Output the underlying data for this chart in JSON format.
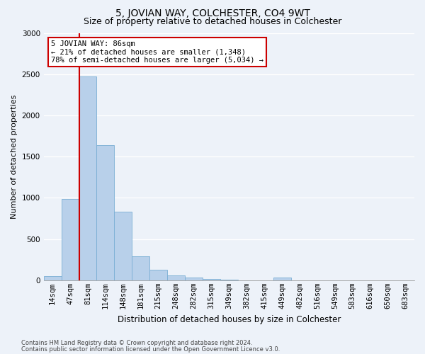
{
  "title": "5, JOVIAN WAY, COLCHESTER, CO4 9WT",
  "subtitle": "Size of property relative to detached houses in Colchester",
  "xlabel": "Distribution of detached houses by size in Colchester",
  "ylabel": "Number of detached properties",
  "categories": [
    "14sqm",
    "47sqm",
    "81sqm",
    "114sqm",
    "148sqm",
    "181sqm",
    "215sqm",
    "248sqm",
    "282sqm",
    "315sqm",
    "349sqm",
    "382sqm",
    "415sqm",
    "449sqm",
    "482sqm",
    "516sqm",
    "549sqm",
    "583sqm",
    "616sqm",
    "650sqm",
    "683sqm"
  ],
  "values": [
    50,
    990,
    2470,
    1640,
    830,
    295,
    130,
    55,
    30,
    15,
    5,
    0,
    0,
    30,
    0,
    0,
    0,
    0,
    0,
    0,
    0
  ],
  "bar_color": "#b8d0ea",
  "bar_edge_color": "#7aaed4",
  "vline_index": 2,
  "vline_color": "#cc0000",
  "annotation_text": "5 JOVIAN WAY: 86sqm\n← 21% of detached houses are smaller (1,348)\n78% of semi-detached houses are larger (5,034) →",
  "annotation_box_facecolor": "#ffffff",
  "annotation_box_edgecolor": "#cc0000",
  "ylim": [
    0,
    3000
  ],
  "yticks": [
    0,
    500,
    1000,
    1500,
    2000,
    2500,
    3000
  ],
  "footer1": "Contains HM Land Registry data © Crown copyright and database right 2024.",
  "footer2": "Contains public sector information licensed under the Open Government Licence v3.0.",
  "bg_color": "#edf2f9",
  "title_fontsize": 10,
  "subtitle_fontsize": 9,
  "xlabel_fontsize": 8.5,
  "ylabel_fontsize": 8,
  "tick_fontsize": 7.5
}
